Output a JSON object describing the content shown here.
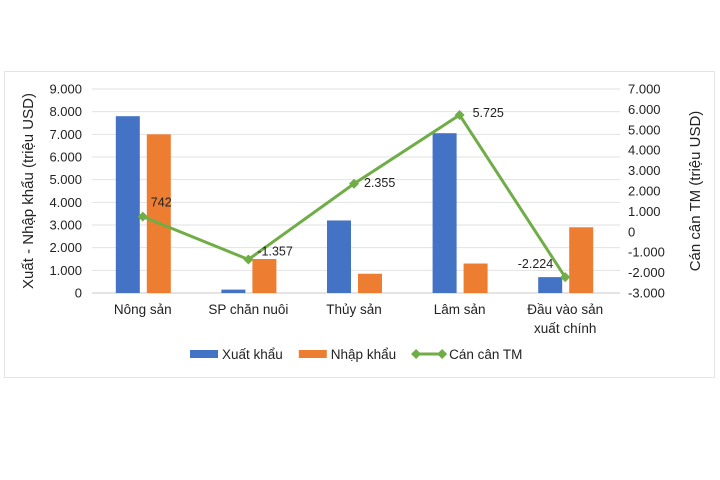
{
  "chart_data": {
    "type": "bar+line",
    "categories": [
      "Nông sản",
      "SP chăn nuôi",
      "Thủy sản",
      "Lâm sản",
      "Đầu vào sản xuất chính"
    ],
    "category_lines": [
      [
        "Nông sản"
      ],
      [
        "SP chăn nuôi"
      ],
      [
        "Thủy sản"
      ],
      [
        "Lâm sản"
      ],
      [
        "Đầu vào sản",
        "xuất chính"
      ]
    ],
    "series": [
      {
        "name": "Xuất khẩu",
        "type": "bar",
        "axis": "left",
        "color": "#4472C4",
        "values": [
          7800,
          150,
          3200,
          7050,
          700
        ]
      },
      {
        "name": "Nhập khẩu",
        "type": "bar",
        "axis": "left",
        "color": "#ED7D31",
        "values": [
          7000,
          1500,
          850,
          1300,
          2900
        ]
      },
      {
        "name": "Cán cân TM",
        "type": "line",
        "axis": "right",
        "color": "#70AD47",
        "marker": "diamond",
        "values": [
          742,
          -1357,
          2355,
          5725,
          -2224
        ],
        "data_labels": [
          "742",
          "-1.357",
          "2.355",
          "5.725",
          "-2.224"
        ]
      }
    ],
    "ylabel": "Xuất - Nhập khẩu (triệu USD)",
    "ylabel_right": "Cán cân TM (triệu USD)",
    "ylim": [
      0,
      9000
    ],
    "ylim_right": [
      -3000,
      7000
    ],
    "yticks": [
      "0",
      "1.000",
      "2.000",
      "3.000",
      "4.000",
      "5.000",
      "6.000",
      "7.000",
      "8.000",
      "9.000"
    ],
    "yticks_right": [
      "-3.000",
      "-2.000",
      "-1.000",
      "0",
      "1.000",
      "2.000",
      "3.000",
      "4.000",
      "5.000",
      "6.000",
      "7.000"
    ],
    "grid": true,
    "legend": "bottom"
  }
}
